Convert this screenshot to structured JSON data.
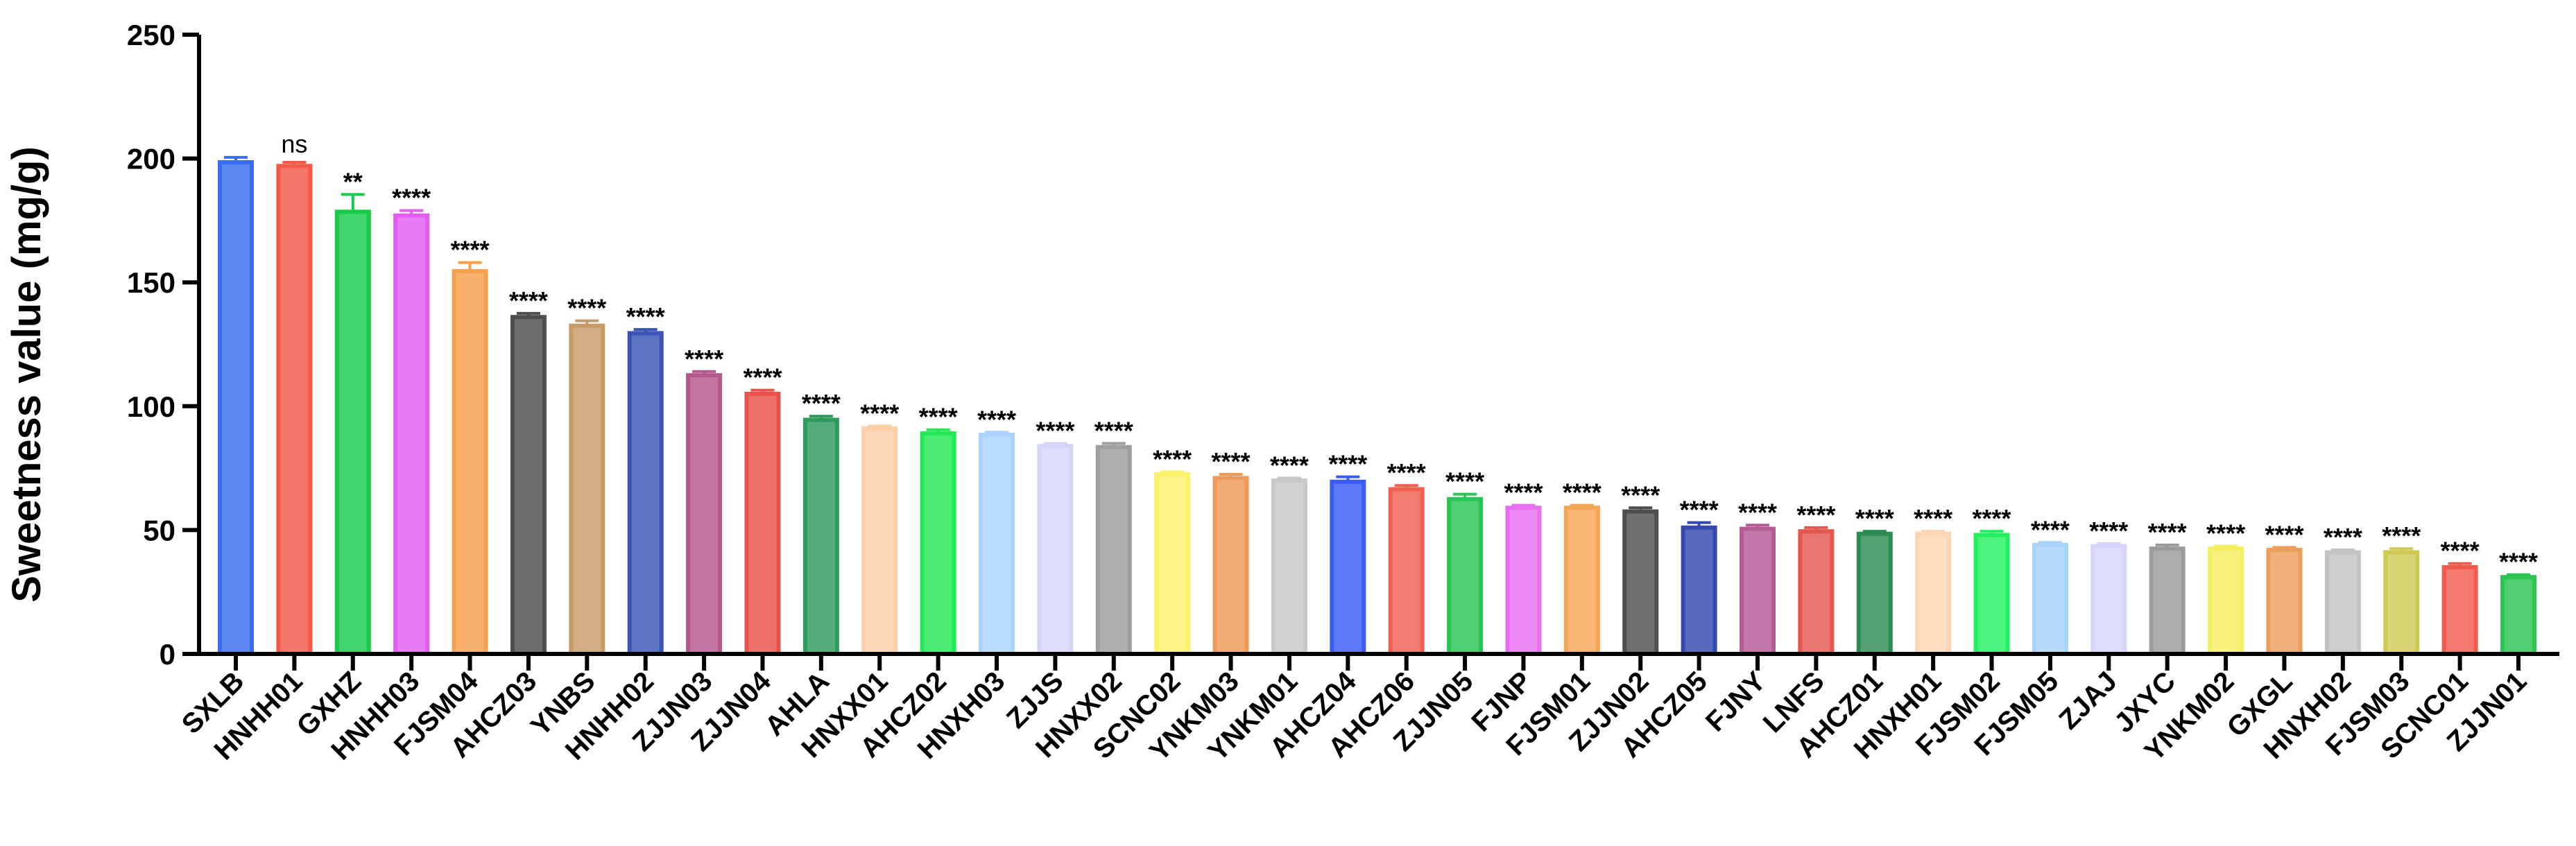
{
  "chart_data": {
    "type": "bar",
    "title": "",
    "xlabel": "",
    "ylabel": "Sweetness value (mg/g)",
    "ylim": [
      0,
      250
    ],
    "yticks": [
      0,
      50,
      100,
      150,
      200,
      250
    ],
    "grid": false,
    "legend": "none",
    "categories": [
      "SXLB",
      "HNHH01",
      "GXHZ",
      "HNHH03",
      "FJSM04",
      "AHCZ03",
      "YNBS",
      "HNHH02",
      "ZJJN03",
      "ZJJN04",
      "AHLA",
      "HNXX01",
      "AHCZ02",
      "HNXH03",
      "ZJJS",
      "HNXX02",
      "SCNC02",
      "YNKM03",
      "YNKM01",
      "AHCZ04",
      "AHCZ06",
      "ZJJN05",
      "FJNP",
      "FJSM01",
      "ZJJN02",
      "AHCZ05",
      "FJNY",
      "LNFS",
      "AHCZ01",
      "HNXH01",
      "FJSM02",
      "FJSM05",
      "ZJAJ",
      "JXYC",
      "YNKM02",
      "GXGL",
      "HNXH02",
      "FJSM03",
      "SCNC01",
      "ZJJN01"
    ],
    "values": [
      198.5,
      197,
      178.5,
      177,
      154.5,
      136,
      132.5,
      129.5,
      112.5,
      105,
      94.5,
      91,
      89,
      88.5,
      84,
      83.5,
      72.5,
      71,
      70,
      69.5,
      66.5,
      62.5,
      59,
      59,
      57.5,
      51,
      50.5,
      49.5,
      48.5,
      48.5,
      48,
      44,
      43.5,
      42.5,
      42.5,
      42,
      41,
      41,
      35,
      31
    ],
    "errors": [
      2,
      1.5,
      7,
      2,
      3.5,
      1.5,
      2,
      1.5,
      1.5,
      1.5,
      1.5,
      1,
      1.5,
      1,
      1,
      1.5,
      1,
      1.5,
      1,
      2,
      1.5,
      2,
      1,
      1,
      1.5,
      2,
      1.5,
      1.5,
      1,
      1,
      1.5,
      1,
      1,
      1.5,
      1,
      1,
      1,
      1.5,
      1.5,
      1
    ],
    "significance": [
      "",
      "ns",
      "**",
      "****",
      "****",
      "****",
      "****",
      "****",
      "****",
      "****",
      "****",
      "****",
      "****",
      "****",
      "****",
      "****",
      "****",
      "****",
      "****",
      "****",
      "****",
      "****",
      "****",
      "****",
      "****",
      "****",
      "****",
      "****",
      "****",
      "****",
      "****",
      "****",
      "****",
      "****",
      "****",
      "****",
      "****",
      "****",
      "****",
      "****"
    ],
    "colors": [
      "#3a6df0",
      "#f2594a",
      "#18c94a",
      "#e35df0",
      "#f5a04d",
      "#4d4d4d",
      "#c89a66",
      "#3a55b5",
      "#b5578f",
      "#e8524a",
      "#2e9a5c",
      "#fdd0a8",
      "#22e855",
      "#aad4fb",
      "#d5d5f8",
      "#9e9e9e",
      "#fbf26a",
      "#ee9a58",
      "#c8c8c8",
      "#3a5cf5",
      "#f05f52",
      "#28c455",
      "#e86ef0",
      "#f5a655",
      "#4f4f4f",
      "#3349b0",
      "#b45c96",
      "#e3574f",
      "#2b8c52",
      "#fdd5b5",
      "#22f060",
      "#a8d3fb",
      "#d5d5fb",
      "#9b9b9b",
      "#f5ef60",
      "#ee9e5c",
      "#c3c3c3",
      "#cfc954",
      "#f05a4e",
      "#2ac450"
    ]
  }
}
